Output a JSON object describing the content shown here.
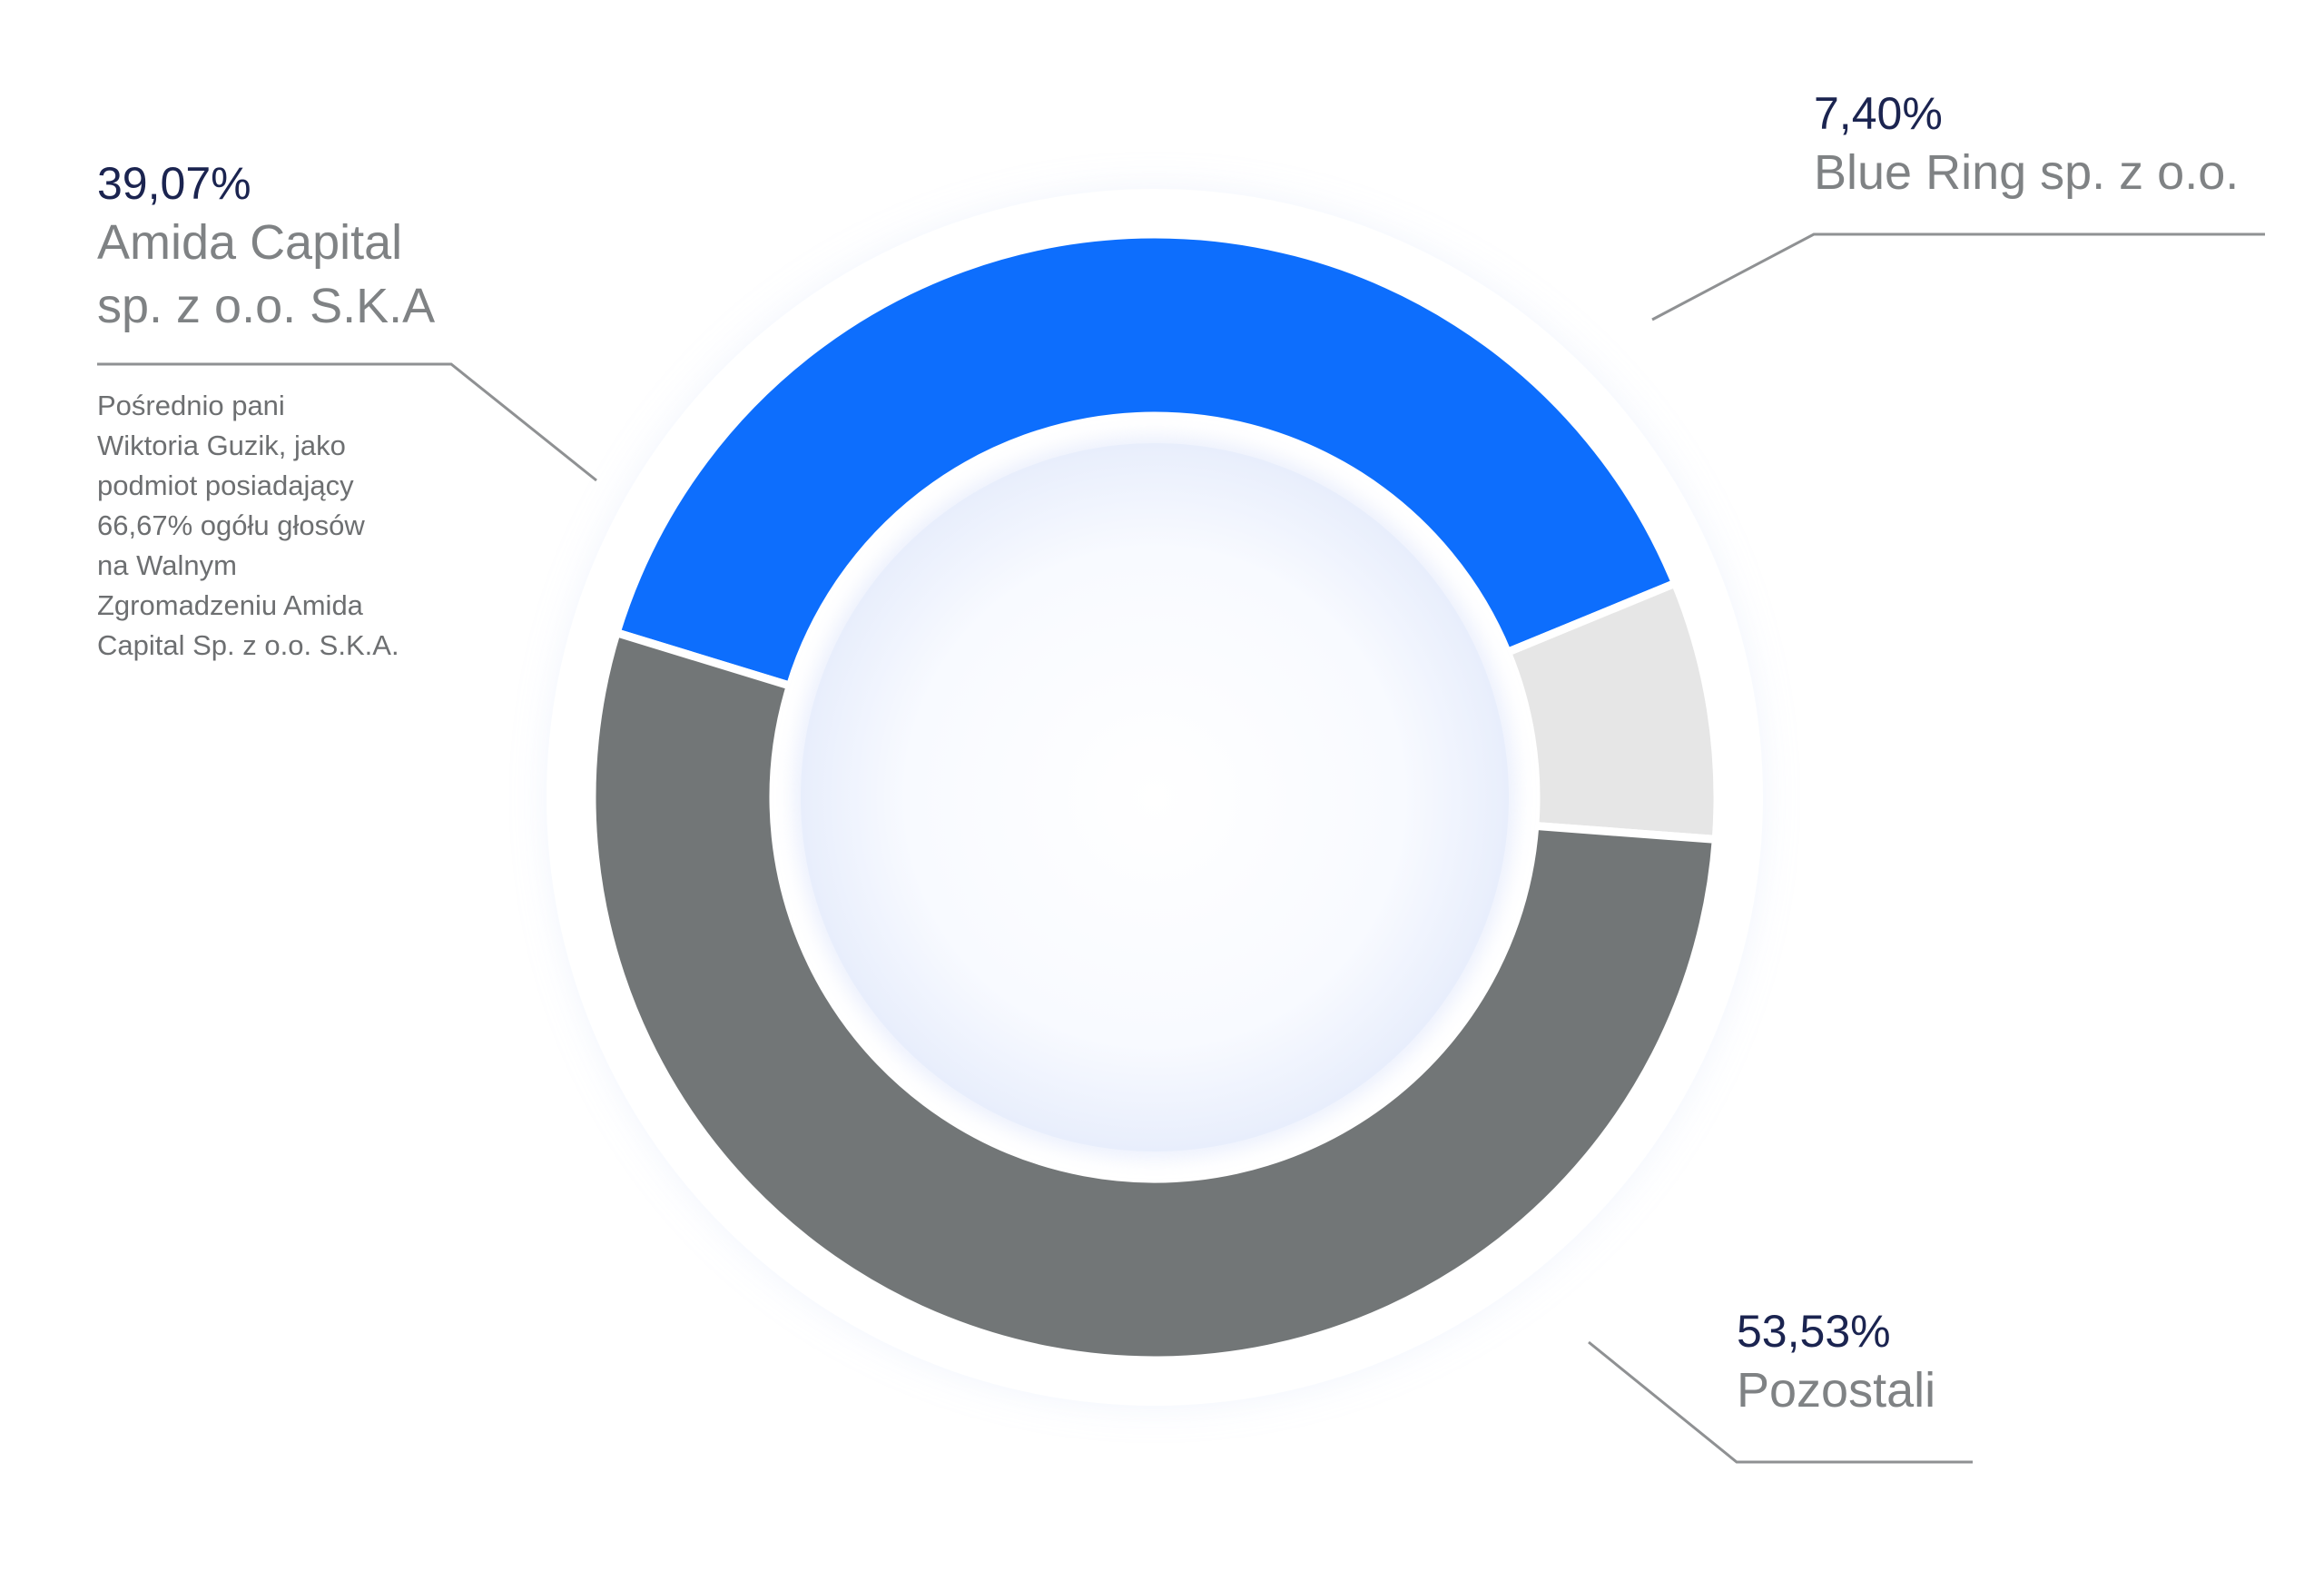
{
  "chart_data": {
    "type": "pie",
    "variant": "donut",
    "title": "",
    "segments": [
      {
        "label_value": "39,07%",
        "value": 39.07,
        "name_lines": [
          "Amida Capital",
          "sp. z o.o. S.K.A"
        ],
        "note_lines": [
          "Pośrednio pani",
          "Wiktoria Guzik, jako",
          "podmiot posiadający",
          "66,67% ogółu głosów",
          "na Walnym",
          "Zgromadzeniu Amida",
          "Capital Sp. z o.o. S.K.A."
        ],
        "color": "#0d6efd"
      },
      {
        "label_value": "7,40%",
        "value": 7.4,
        "name_lines": [
          "Blue Ring sp. z o.o."
        ],
        "note_lines": [],
        "color": "#e6e6e6"
      },
      {
        "label_value": "53,53%",
        "value": 53.53,
        "name_lines": [
          "Pozostali"
        ],
        "note_lines": [],
        "color": "#727677"
      }
    ]
  },
  "colors": {
    "value_text": "#1b2450",
    "name_text": "#7f8284",
    "leader_line": "#8f9193",
    "glow": "#b9c8f5"
  }
}
